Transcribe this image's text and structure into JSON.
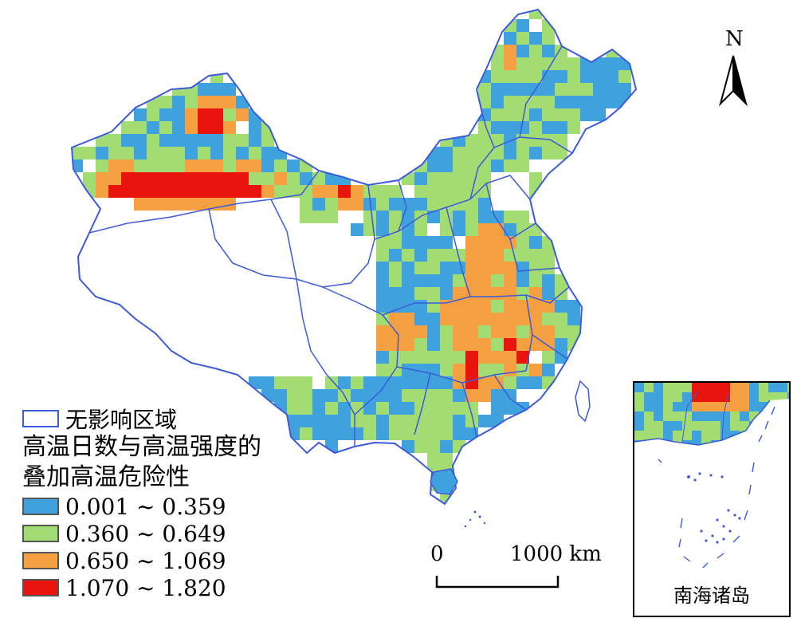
{
  "legend": {
    "none_label": "无影响区域",
    "title_line1": "高温日数与高温强度的",
    "title_line2": "叠加高温危险性",
    "classes": [
      {
        "label": "0.001 ~ 0.359",
        "color": "#3fa2dc"
      },
      {
        "label": "0.360 ~ 0.649",
        "color": "#a2dc72"
      },
      {
        "label": "0.650 ~ 1.069",
        "color": "#f4a040"
      },
      {
        "label": "1.070 ~ 1.820",
        "color": "#e8150f"
      }
    ]
  },
  "north_arrow": {
    "label": "N"
  },
  "scale_bar": {
    "start": "0",
    "end": "1000 km"
  },
  "inset": {
    "label": "南海诸岛"
  },
  "colors": {
    "boundary": "#3b5bdb",
    "none": "#ffffff"
  }
}
